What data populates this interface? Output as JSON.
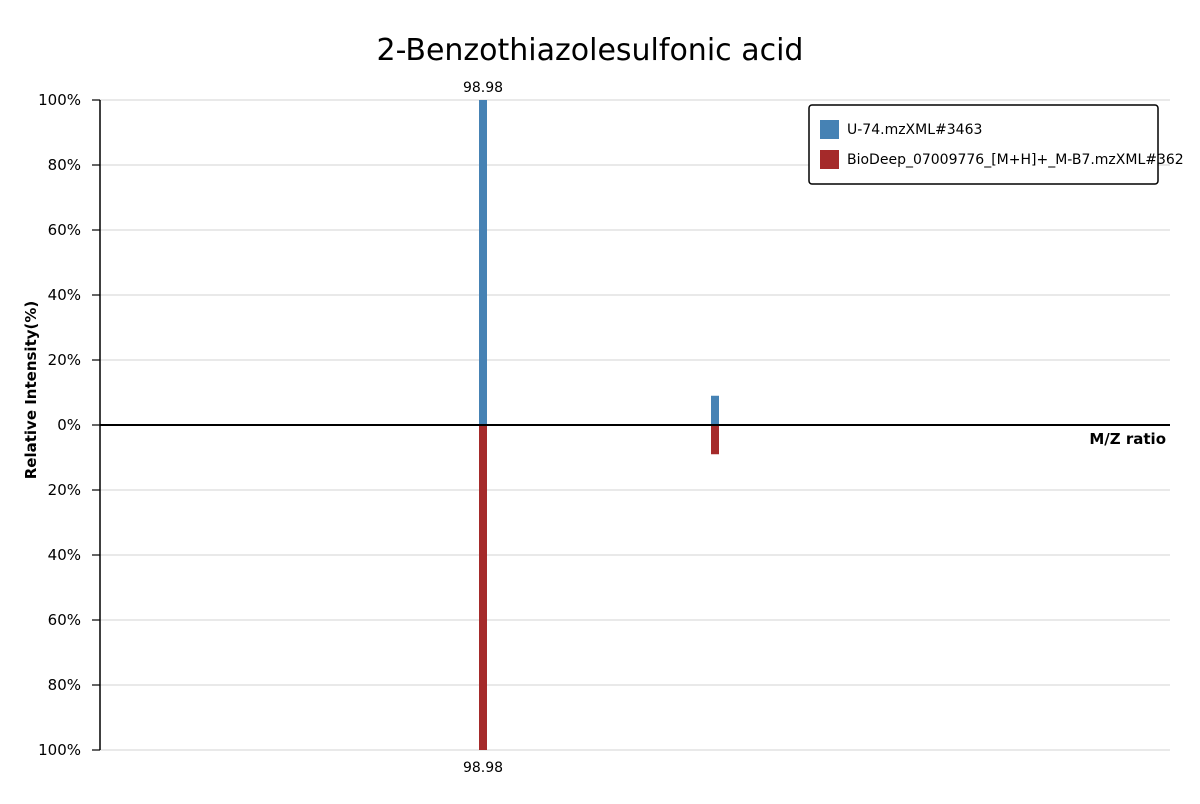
{
  "chart_data": {
    "type": "bar",
    "subtype": "mirror-mass-spectrum",
    "title": "2-Benzothiazolesulfonic acid",
    "xlabel": "M/Z ratio",
    "ylabel": "Relative Intensity(%)",
    "ylim": [
      -100,
      100
    ],
    "y_ticks": [
      {
        "value": 100,
        "label": "100%"
      },
      {
        "value": 80,
        "label": "80%"
      },
      {
        "value": 60,
        "label": "60%"
      },
      {
        "value": 40,
        "label": "40%"
      },
      {
        "value": 20,
        "label": "20%"
      },
      {
        "value": 0,
        "label": "0%"
      },
      {
        "value": -20,
        "label": "20%"
      },
      {
        "value": -40,
        "label": "40%"
      },
      {
        "value": -60,
        "label": "60%"
      },
      {
        "value": -80,
        "label": "80%"
      },
      {
        "value": -100,
        "label": "100%"
      }
    ],
    "grid": true,
    "legend_position": "top-right",
    "series": [
      {
        "name": "U-74.mzXML#3463",
        "color": "#4682b4",
        "direction": "up",
        "peaks": [
          {
            "mz": 98.98,
            "intensity": 100,
            "label": "98.98"
          },
          {
            "mz": 134.0,
            "intensity": 9,
            "label": ""
          }
        ]
      },
      {
        "name": "BioDeep_07009776_[M+H]+_M-B7.mzXML#362",
        "color": "#a52a2a",
        "direction": "down",
        "peaks": [
          {
            "mz": 98.98,
            "intensity": 100,
            "label": "98.98"
          },
          {
            "mz": 134.0,
            "intensity": 9,
            "label": ""
          }
        ]
      }
    ]
  }
}
